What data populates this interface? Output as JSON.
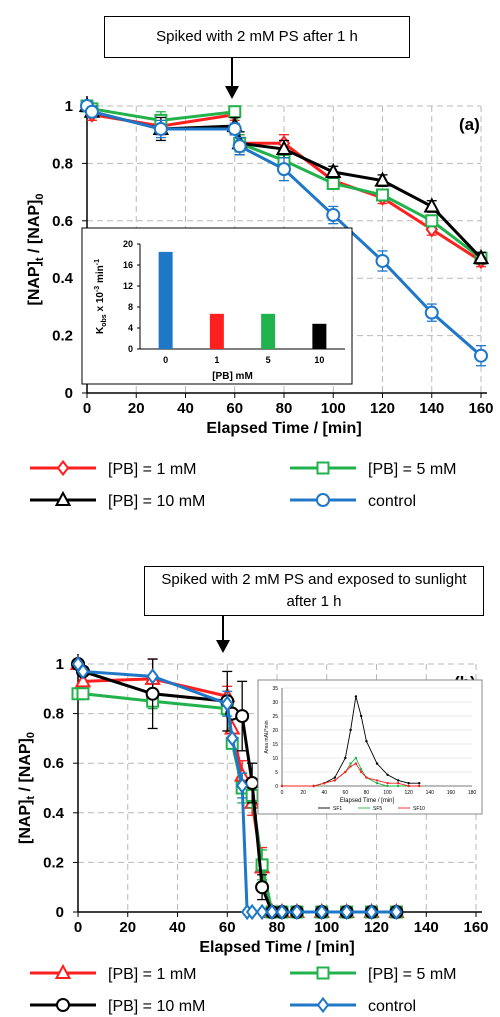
{
  "panel_a": {
    "callout": "Spiked with 2 mM PS after 1 h",
    "panel_label": "(a)",
    "inset": {
      "ylabel_main": "K",
      "ylabel_sub": "obs",
      "ylabel_rest": " x 10",
      "ylabel_exp": "-3",
      "ylabel_unit": " min",
      "ylabel_unit_exp": "-1"
    }
  },
  "panel_b": {
    "callout_line1": "Spiked with 2 mM PS and exposed to sunlight",
    "callout_line2": "after 1 h",
    "panel_label": "(b)",
    "inset": {
      "ylabel": "Area mAU*min",
      "xlabel": "Elapsed Time / [min]",
      "legend": [
        "SF1",
        "SF5",
        "SF10"
      ]
    }
  },
  "common": {
    "ylabel_pre": "[NAP]",
    "ylabel_sub1": "t",
    "ylabel_mid": " / [NAP]",
    "ylabel_sub2": "0"
  },
  "colors": {
    "red": "#ff1f1f",
    "green": "#22b24c",
    "black": "#000000",
    "blue": "#1f77c8"
  },
  "chart_data": [
    {
      "type": "line",
      "xlabel": "Elapsed Time / [min]",
      "ylabel": "[NAP]t / [NAP]0",
      "xlim": [
        0,
        160
      ],
      "ylim": [
        0,
        1
      ],
      "xticks": [
        0,
        20,
        40,
        60,
        80,
        100,
        120,
        140,
        160
      ],
      "yticks": [
        0,
        0.2,
        0.4,
        0.6,
        0.8,
        1
      ],
      "grid": true,
      "legend_position": "bottom",
      "series": [
        {
          "name": "[PB] = 1 mM",
          "color": "#ff1f1f",
          "marker": "diamond",
          "x": [
            0,
            2,
            30,
            60,
            62,
            80,
            100,
            120,
            140,
            160
          ],
          "y": [
            1.0,
            0.97,
            0.93,
            0.97,
            0.87,
            0.87,
            0.74,
            0.68,
            0.57,
            0.46
          ]
        },
        {
          "name": "[PB] = 5 mM",
          "color": "#22b24c",
          "marker": "square",
          "x": [
            0,
            2,
            30,
            60,
            62,
            80,
            100,
            120,
            140,
            160
          ],
          "y": [
            1.0,
            0.99,
            0.95,
            0.98,
            0.87,
            0.81,
            0.73,
            0.69,
            0.6,
            0.47
          ]
        },
        {
          "name": "[PB] = 10 mM",
          "color": "#000000",
          "marker": "triangle",
          "x": [
            0,
            2,
            30,
            60,
            62,
            80,
            100,
            120,
            140,
            160
          ],
          "y": [
            1.0,
            0.98,
            0.92,
            0.93,
            0.87,
            0.85,
            0.77,
            0.74,
            0.65,
            0.47
          ]
        },
        {
          "name": "control",
          "color": "#1f77c8",
          "marker": "circle",
          "x": [
            0,
            2,
            30,
            60,
            62,
            80,
            100,
            120,
            140,
            160
          ],
          "y": [
            1.0,
            0.98,
            0.92,
            0.92,
            0.86,
            0.78,
            0.62,
            0.46,
            0.28,
            0.13
          ]
        }
      ],
      "inset": {
        "type": "bar",
        "xlabel": "[PB] mM",
        "categories": [
          "0",
          "1",
          "5",
          "10"
        ],
        "values": [
          18.5,
          6.7,
          6.7,
          4.8
        ],
        "colors": [
          "#1f77c8",
          "#ff1f1f",
          "#22b24c",
          "#000000"
        ],
        "ylim": [
          0,
          20
        ],
        "yticks": [
          0,
          4,
          8,
          12,
          16,
          20
        ]
      }
    },
    {
      "type": "line",
      "xlabel": "Elapsed Time / [min]",
      "ylabel": "[NAP]t / [NAP]0",
      "xlim": [
        0,
        160
      ],
      "ylim": [
        0,
        1
      ],
      "xticks": [
        0,
        20,
        40,
        60,
        80,
        100,
        120,
        140,
        160
      ],
      "yticks": [
        0,
        0.2,
        0.4,
        0.6,
        0.8,
        1
      ],
      "grid": true,
      "legend_position": "bottom",
      "series": [
        {
          "name": "[PB] = 1 mM",
          "color": "#ff1f1f",
          "marker": "triangle",
          "x": [
            0,
            2,
            30,
            60,
            62,
            66,
            70,
            74,
            78,
            82,
            88,
            98,
            108,
            118,
            128
          ],
          "y": [
            1.0,
            0.93,
            0.94,
            0.87,
            0.74,
            0.55,
            0.44,
            0.18,
            0,
            0,
            0,
            0,
            0,
            0,
            0
          ]
        },
        {
          "name": "[PB] = 5 mM",
          "color": "#22b24c",
          "marker": "square",
          "x": [
            0,
            2,
            30,
            60,
            62,
            66,
            70,
            74,
            78,
            82,
            88,
            98,
            108,
            118,
            128
          ],
          "y": [
            0.88,
            0.88,
            0.85,
            0.82,
            0.68,
            0.5,
            0.47,
            0.19,
            0,
            0,
            0,
            0,
            0,
            0,
            0
          ]
        },
        {
          "name": "[PB] = 10 mM",
          "color": "#000000",
          "marker": "circle",
          "x": [
            0,
            2,
            30,
            60,
            62,
            66,
            70,
            74,
            78,
            82,
            88,
            98,
            108,
            118,
            128
          ],
          "y": [
            1.0,
            0.97,
            0.88,
            0.85,
            0.8,
            0.79,
            0.52,
            0.1,
            0,
            0,
            0,
            0,
            0,
            0,
            0
          ]
        },
        {
          "name": "control",
          "color": "#1f77c8",
          "marker": "diamond",
          "x": [
            0,
            2,
            30,
            60,
            62,
            66,
            68,
            70,
            74,
            78,
            82,
            88,
            98,
            108,
            118,
            128
          ],
          "y": [
            1.0,
            0.97,
            0.95,
            0.84,
            0.7,
            0.51,
            0,
            0,
            0,
            0,
            0,
            0,
            0,
            0,
            0,
            0
          ]
        }
      ],
      "inset": {
        "type": "line",
        "xlim": [
          0,
          180
        ],
        "ylim": [
          0,
          35
        ],
        "xticks": [
          0,
          20,
          40,
          60,
          80,
          100,
          120,
          140,
          160,
          180
        ],
        "yticks": [
          0,
          5,
          10,
          15,
          20,
          25,
          30,
          35
        ],
        "series": [
          {
            "name": "SF1",
            "color": "#000000",
            "x": [
              0,
              30,
              40,
              50,
              60,
              65,
              70,
              75,
              80,
              90,
              100,
              110,
              120,
              130
            ],
            "y": [
              0,
              0,
              1,
              3,
              10,
              20,
              32,
              25,
              16,
              8,
              4,
              2,
              1,
              1
            ]
          },
          {
            "name": "SF5",
            "color": "#22b24c",
            "x": [
              0,
              30,
              40,
              50,
              60,
              65,
              70,
              75,
              80,
              90,
              100,
              110,
              120,
              130
            ],
            "y": [
              0,
              0,
              1,
              2,
              5,
              8,
              10,
              6,
              3,
              1,
              0,
              0,
              0,
              0
            ]
          },
          {
            "name": "SF10",
            "color": "#ff1f1f",
            "x": [
              0,
              30,
              40,
              50,
              60,
              65,
              70,
              75,
              80,
              90,
              100,
              110,
              120,
              130
            ],
            "y": [
              0,
              0,
              1,
              2,
              5,
              7,
              8,
              5,
              3,
              2,
              1,
              1,
              0,
              0
            ]
          }
        ]
      }
    }
  ]
}
